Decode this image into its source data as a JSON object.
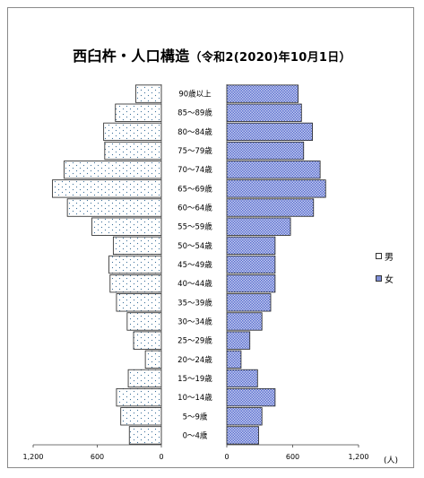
{
  "chart_data": {
    "type": "bar",
    "title": "西臼杵・人口構造",
    "subtitle": "（令和2(2020)年10月1日）",
    "unit_label": "(人)",
    "categories": [
      "0～4歳",
      "5～9歳",
      "10～14歳",
      "15～19歳",
      "20～24歳",
      "25～29歳",
      "30～34歳",
      "35～39歳",
      "40～44歳",
      "45～49歳",
      "50～54歳",
      "55～59歳",
      "60～64歳",
      "65～69歳",
      "70～74歳",
      "75～79歳",
      "80～84歳",
      "85～89歳",
      "90歳以上"
    ],
    "series": [
      {
        "name": "男",
        "color": "#ffffff",
        "pattern": "dots",
        "values": [
          300,
          380,
          420,
          310,
          150,
          260,
          320,
          420,
          480,
          490,
          450,
          650,
          880,
          1020,
          910,
          530,
          540,
          430,
          240
        ]
      },
      {
        "name": "女",
        "color": "#7f8fd6",
        "pattern": "checker",
        "values": [
          290,
          320,
          440,
          280,
          130,
          210,
          320,
          400,
          440,
          440,
          440,
          580,
          790,
          900,
          850,
          700,
          780,
          680,
          650
        ]
      }
    ],
    "xlim": [
      0,
      1200
    ],
    "ticks": [
      0,
      600,
      1200
    ],
    "tick_labels_left": [
      "1,200",
      "600",
      "0"
    ],
    "tick_labels_right": [
      "0",
      "600",
      "1,200"
    ],
    "legend_position": "right",
    "grid": false
  }
}
